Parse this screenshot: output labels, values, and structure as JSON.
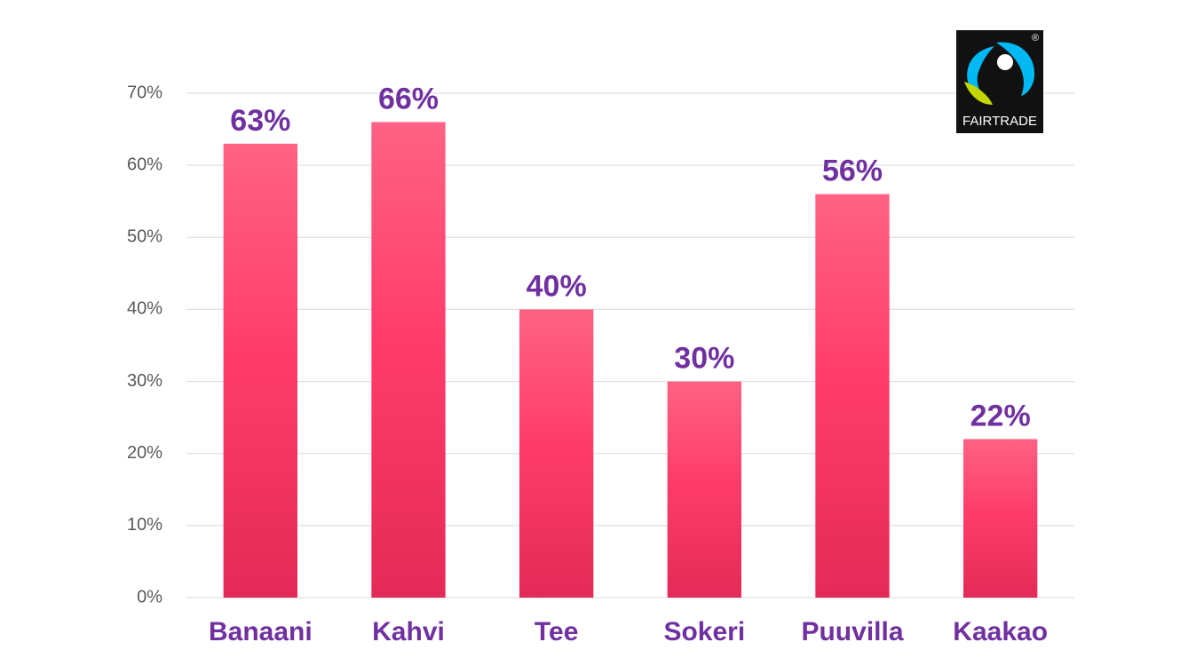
{
  "chart_data": {
    "type": "bar",
    "categories": [
      "Banaani",
      "Kahvi",
      "Tee",
      "Sokeri",
      "Puuvilla",
      "Kaakao"
    ],
    "values": [
      63,
      66,
      40,
      30,
      56,
      22
    ],
    "value_labels": [
      "63%",
      "66%",
      "40%",
      "30%",
      "56%",
      "22%"
    ],
    "color": "#ff3d6a",
    "ylim": [
      0,
      70
    ],
    "yticks": [
      {
        "value": 0,
        "label": "0%"
      },
      {
        "value": 10,
        "label": "10%"
      },
      {
        "value": 20,
        "label": "20%"
      },
      {
        "value": 30,
        "label": "30%"
      },
      {
        "value": 40,
        "label": "40%"
      },
      {
        "value": 50,
        "label": "50%"
      },
      {
        "value": 60,
        "label": "60%"
      },
      {
        "value": 70,
        "label": "70%"
      }
    ],
    "grid": true
  },
  "logo": {
    "label": "FAIRTRADE",
    "mark": "®"
  }
}
